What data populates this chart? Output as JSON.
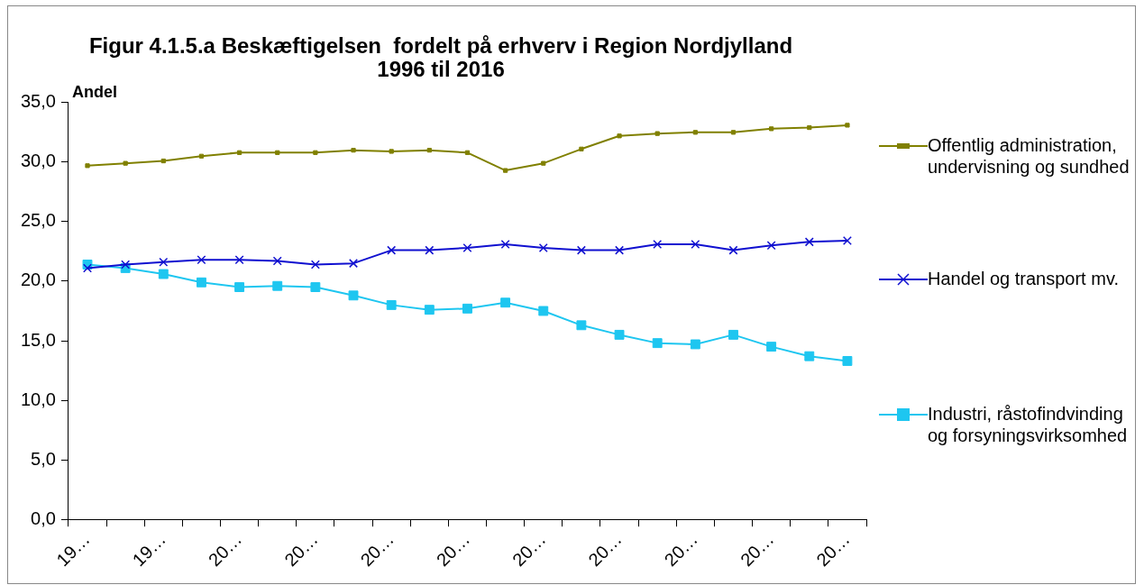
{
  "chart_data": {
    "type": "line",
    "title": "Figur 4.1.5.a Beskæftigelsen  fordelt på erhverv i Region Nordjylland\n1996 til 2016",
    "ylabel": "Andel",
    "categories": [
      "19…",
      null,
      "19…",
      null,
      "20…",
      null,
      "20…",
      null,
      "20…",
      null,
      "20…",
      null,
      "20…",
      null,
      "20…",
      null,
      "20…",
      null,
      "20…",
      null,
      "20…"
    ],
    "series": [
      {
        "name": "Offentlig administration, undervisning og sundhed",
        "color": "#808000",
        "marker": "square",
        "values": [
          29.7,
          29.9,
          30.1,
          30.5,
          30.8,
          30.8,
          30.8,
          31.0,
          30.9,
          31.0,
          30.8,
          29.3,
          29.9,
          31.1,
          32.2,
          32.4,
          32.5,
          32.5,
          32.8,
          32.9,
          33.1
        ]
      },
      {
        "name": "Handel og transport mv.",
        "color": "#1010d0",
        "marker": "cross",
        "values": [
          21.1,
          21.4,
          21.6,
          21.8,
          21.8,
          21.7,
          21.4,
          21.5,
          22.6,
          22.6,
          22.8,
          23.1,
          22.8,
          22.6,
          22.6,
          23.1,
          23.1,
          22.6,
          23.0,
          23.3,
          23.4
        ]
      },
      {
        "name": "Industri, råstofindvinding og forsyningsvirksomhed",
        "color": "#1ec6f0",
        "marker": "square",
        "values": [
          21.4,
          21.1,
          20.6,
          19.9,
          19.5,
          19.6,
          19.5,
          18.8,
          18.0,
          17.6,
          17.7,
          18.2,
          17.5,
          16.3,
          15.5,
          14.8,
          14.7,
          15.5,
          14.5,
          13.7,
          13.3
        ]
      }
    ],
    "ylim": [
      0,
      35
    ],
    "yticks": [
      {
        "value": 0,
        "label": "0,0"
      },
      {
        "value": 5,
        "label": "5,0"
      },
      {
        "value": 10,
        "label": "10,0"
      },
      {
        "value": 15,
        "label": "15,0"
      },
      {
        "value": 20,
        "label": "20,0"
      },
      {
        "value": 25,
        "label": "25,0"
      },
      {
        "value": 30,
        "label": "30,0"
      },
      {
        "value": 35,
        "label": "35,0"
      }
    ],
    "grid": false,
    "legend": "right",
    "line_style": "solid"
  }
}
